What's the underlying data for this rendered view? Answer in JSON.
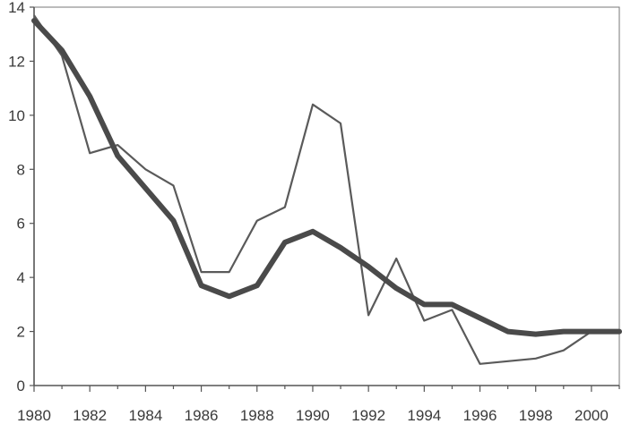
{
  "chart_data": {
    "type": "line",
    "title": "",
    "xlabel": "",
    "ylabel": "",
    "x": [
      1980,
      1981,
      1982,
      1983,
      1984,
      1985,
      1986,
      1987,
      1988,
      1989,
      1990,
      1991,
      1992,
      1993,
      1994,
      1995,
      1996,
      1997,
      1998,
      1999,
      2000,
      2001
    ],
    "xlim": [
      1980,
      2001
    ],
    "ylim": [
      0,
      14
    ],
    "x_ticks": [
      "1980",
      "1982",
      "1984",
      "1986",
      "1988",
      "1990",
      "1992",
      "1994",
      "1996",
      "1998",
      "2000"
    ],
    "y_ticks": [
      "0",
      "2",
      "4",
      "6",
      "8",
      "10",
      "12",
      "14"
    ],
    "grid": false,
    "series": [
      {
        "values": [
          13.7,
          12.2,
          8.6,
          8.9,
          8.0,
          7.4,
          4.2,
          4.2,
          6.1,
          6.6,
          10.4,
          9.7,
          2.6,
          4.7,
          2.4,
          2.8,
          0.8,
          0.9,
          1.0,
          1.3,
          2.0,
          2.0
        ],
        "style": "thin"
      },
      {
        "values": [
          13.5,
          12.4,
          10.7,
          8.5,
          7.3,
          6.1,
          3.7,
          3.3,
          3.7,
          5.3,
          5.7,
          5.1,
          4.4,
          3.6,
          3.0,
          3.0,
          2.5,
          2.0,
          1.9,
          2.0,
          2.0,
          2.0
        ],
        "style": "thick"
      }
    ]
  }
}
